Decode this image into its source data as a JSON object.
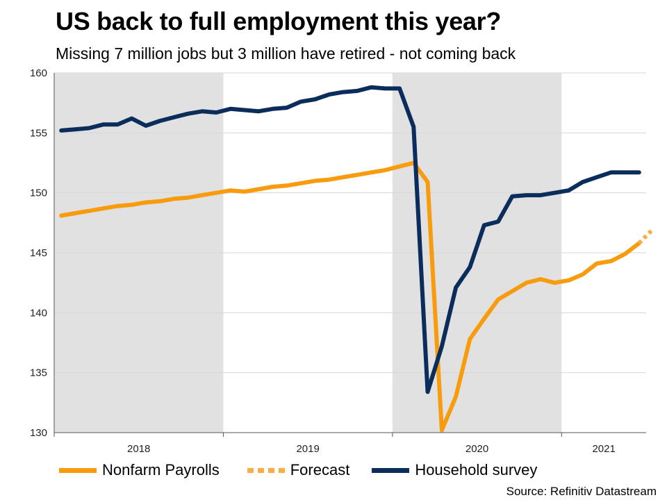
{
  "title": "US back to full employment this year?",
  "subtitle": "Missing 7 million jobs but 3 million have retired - not coming back",
  "source": "Source: Refinitiv Datastream",
  "colors": {
    "payrolls": "#F89C0E",
    "forecast": "#F6AE48",
    "household": "#0B2D5B",
    "shade": "#E1E1E1",
    "grid": "#D6D6D6"
  },
  "chart_data": {
    "type": "line",
    "title": "US back to full employment this year?",
    "ylabel": "",
    "ylim": [
      130,
      160
    ],
    "yticks": [
      130,
      135,
      140,
      145,
      150,
      155,
      160
    ],
    "xlim": [
      2018.0,
      2021.5
    ],
    "x_ticks": [
      {
        "label": "2018",
        "x": 2018.5
      },
      {
        "label": "2019",
        "x": 2019.5
      },
      {
        "label": "2020",
        "x": 2020.5
      },
      {
        "label": "2021",
        "x": 2021.25
      }
    ],
    "shaded_years": [
      [
        2018.0,
        2019.0
      ],
      [
        2020.0,
        2021.0
      ]
    ],
    "series": [
      {
        "name": "Nonfarm Payrolls",
        "style": "solid",
        "color_key": "payrolls",
        "x": [
          2018.042,
          2018.125,
          2018.208,
          2018.292,
          2018.375,
          2018.458,
          2018.542,
          2018.625,
          2018.708,
          2018.792,
          2018.875,
          2018.958,
          2019.042,
          2019.125,
          2019.208,
          2019.292,
          2019.375,
          2019.458,
          2019.542,
          2019.625,
          2019.708,
          2019.792,
          2019.875,
          2019.958,
          2020.042,
          2020.125,
          2020.208,
          2020.292,
          2020.375,
          2020.458,
          2020.542,
          2020.625,
          2020.708,
          2020.792,
          2020.875,
          2020.958,
          2021.042,
          2021.125,
          2021.208,
          2021.292,
          2021.375,
          2021.458
        ],
        "values": [
          148.1,
          148.3,
          148.5,
          148.7,
          148.9,
          149.0,
          149.2,
          149.3,
          149.5,
          149.6,
          149.8,
          150.0,
          150.2,
          150.1,
          150.3,
          150.5,
          150.6,
          150.8,
          151.0,
          151.1,
          151.3,
          151.5,
          151.7,
          151.9,
          152.2,
          152.5,
          150.9,
          130.2,
          133.0,
          137.8,
          139.5,
          141.1,
          141.8,
          142.5,
          142.8,
          142.5,
          142.7,
          143.2,
          144.1,
          144.3,
          144.9,
          145.8
        ]
      },
      {
        "name": "Forecast",
        "style": "dotted",
        "color_key": "forecast",
        "x": [
          2021.458,
          2021.542
        ],
        "values": [
          145.8,
          147.0
        ]
      },
      {
        "name": "Household survey",
        "style": "solid",
        "color_key": "household",
        "x": [
          2018.042,
          2018.125,
          2018.208,
          2018.292,
          2018.375,
          2018.458,
          2018.542,
          2018.625,
          2018.708,
          2018.792,
          2018.875,
          2018.958,
          2019.042,
          2019.125,
          2019.208,
          2019.292,
          2019.375,
          2019.458,
          2019.542,
          2019.625,
          2019.708,
          2019.792,
          2019.875,
          2019.958,
          2020.042,
          2020.125,
          2020.208,
          2020.292,
          2020.375,
          2020.458,
          2020.542,
          2020.625,
          2020.708,
          2020.792,
          2020.875,
          2020.958,
          2021.042,
          2021.125,
          2021.208,
          2021.292,
          2021.375,
          2021.458
        ],
        "values": [
          155.2,
          155.3,
          155.4,
          155.7,
          155.7,
          156.2,
          155.6,
          156.0,
          156.3,
          156.6,
          156.8,
          156.7,
          157.0,
          156.9,
          156.8,
          157.0,
          157.1,
          157.6,
          157.8,
          158.2,
          158.4,
          158.5,
          158.8,
          158.7,
          158.7,
          155.5,
          133.4,
          137.2,
          142.1,
          143.8,
          147.3,
          147.6,
          149.7,
          149.8,
          149.8,
          150.0,
          150.2,
          150.9,
          151.3,
          151.7,
          151.7,
          151.7
        ]
      }
    ]
  }
}
